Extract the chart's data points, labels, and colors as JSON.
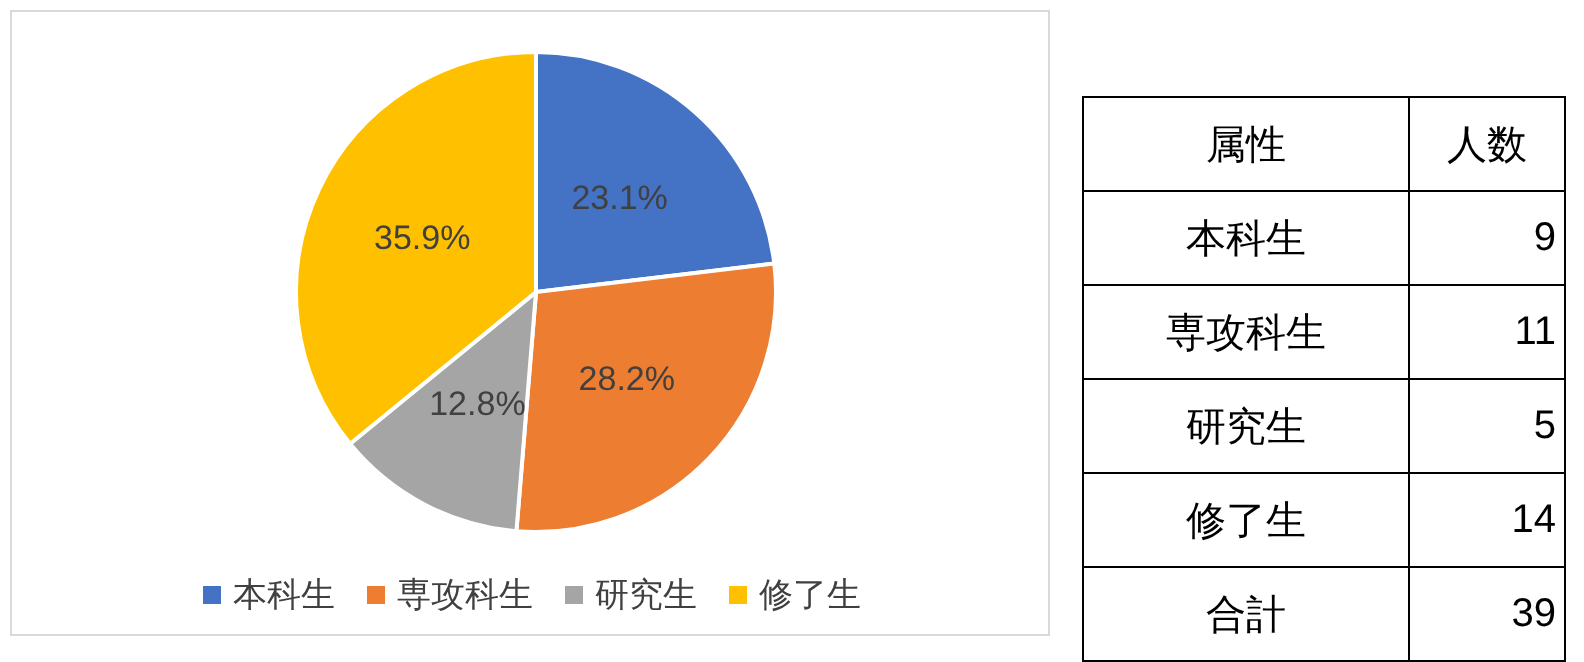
{
  "chart_data": [
    {
      "type": "pie",
      "categories": [
        "本科生",
        "専攻科生",
        "研究生",
        "修了生"
      ],
      "values": [
        23.1,
        28.2,
        12.8,
        35.9
      ],
      "colors": [
        "#4472c4",
        "#ed7d31",
        "#a5a5a5",
        "#ffc000"
      ],
      "value_labels": [
        "23.1%",
        "28.2%",
        "12.8%",
        "35.9%"
      ],
      "legend": "bottom"
    },
    {
      "type": "other",
      "xlabel": "属性",
      "ylabel": "人数",
      "categories": [
        "本科生",
        "専攻科生",
        "研究生",
        "修了生",
        "合計"
      ],
      "values": [
        9,
        11,
        5,
        14,
        39
      ],
      "data_labels": true
    }
  ]
}
